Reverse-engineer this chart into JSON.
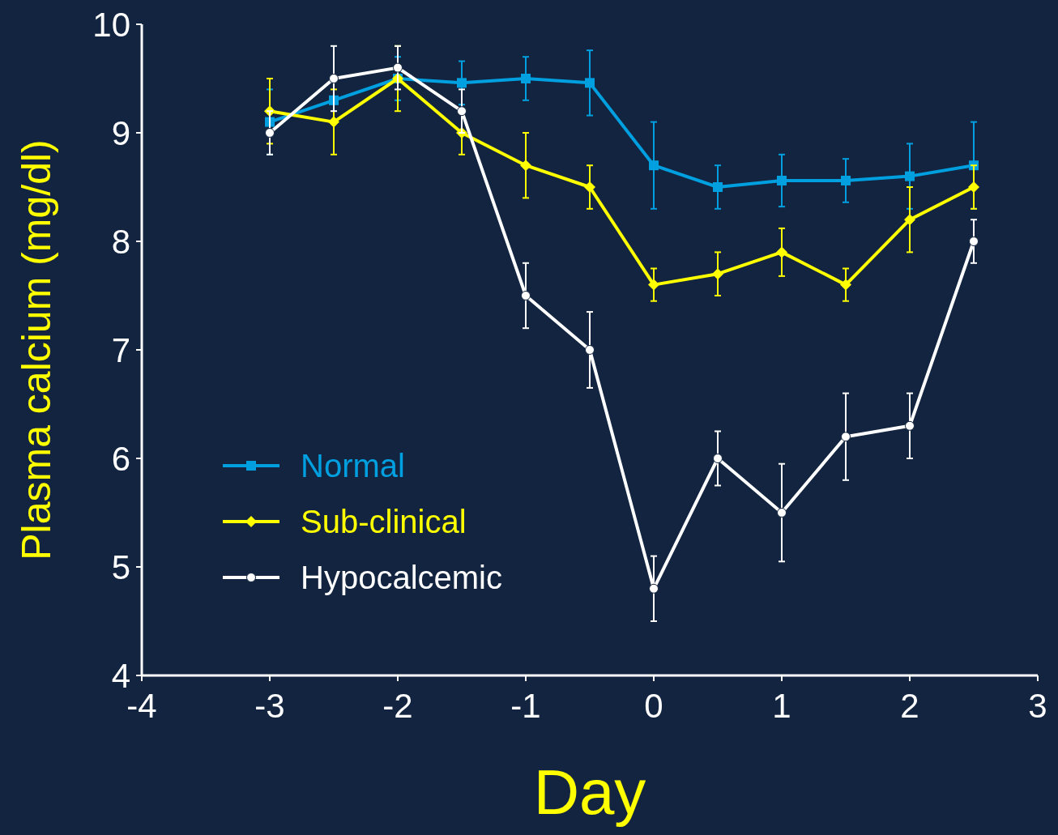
{
  "chart_data": {
    "type": "line",
    "xlabel": "Day",
    "ylabel": "Plasma calcium (mg/dl)",
    "x": [
      -3,
      -2.5,
      -2,
      -1.5,
      -1,
      -0.5,
      0,
      0.5,
      1,
      1.5,
      2,
      2.5
    ],
    "xlim": [
      -4,
      3
    ],
    "xticks": [
      -4,
      -3,
      -2,
      -1,
      0,
      1,
      2,
      3
    ],
    "ylim": [
      4,
      10
    ],
    "yticks": [
      4,
      5,
      6,
      7,
      8,
      9,
      10
    ],
    "grid": false,
    "legend": "bottom left",
    "line_style": "solid",
    "series": [
      {
        "name": "Normal",
        "color": "#00a0e0",
        "marker": "square",
        "values": [
          9.1,
          9.3,
          9.5,
          9.46,
          9.5,
          9.46,
          8.7,
          8.5,
          8.56,
          8.56,
          8.6,
          8.7
        ],
        "errors": [
          0.3,
          null,
          0.2,
          0.2,
          0.2,
          0.3,
          0.4,
          0.2,
          0.24,
          0.2,
          0.3,
          0.4
        ]
      },
      {
        "name": "Sub-clinical",
        "color": "#ffff00",
        "marker": "diamond",
        "values": [
          9.2,
          9.1,
          9.5,
          9.0,
          8.7,
          8.5,
          7.6,
          7.7,
          7.9,
          7.6,
          8.2,
          8.5
        ],
        "errors": [
          0.3,
          0.3,
          0.3,
          0.2,
          0.3,
          0.2,
          0.15,
          0.2,
          0.22,
          0.15,
          0.3,
          0.2
        ]
      },
      {
        "name": "Hypocalcemic",
        "color": "#ffffff",
        "marker": "circle",
        "values": [
          9.0,
          9.5,
          9.6,
          9.2,
          7.5,
          7.0,
          4.8,
          6.0,
          5.5,
          6.2,
          6.3,
          8.0
        ],
        "errors": [
          0.2,
          0.3,
          0.2,
          0.2,
          0.3,
          0.35,
          0.3,
          0.25,
          0.45,
          0.4,
          0.3,
          0.2
        ]
      }
    ]
  }
}
